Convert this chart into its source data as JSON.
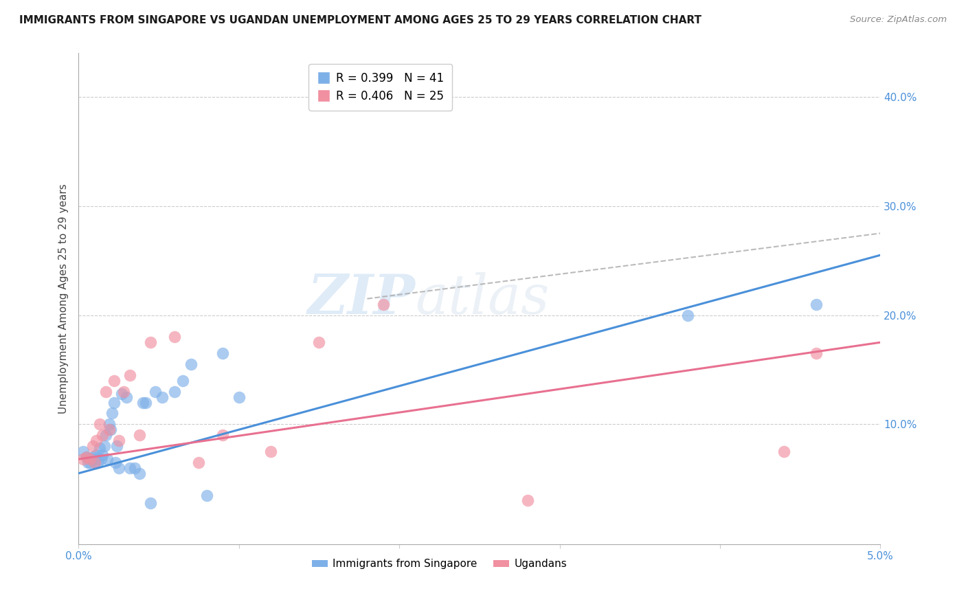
{
  "title": "IMMIGRANTS FROM SINGAPORE VS UGANDAN UNEMPLOYMENT AMONG AGES 25 TO 29 YEARS CORRELATION CHART",
  "source": "Source: ZipAtlas.com",
  "ylabel": "Unemployment Among Ages 25 to 29 years",
  "right_yticks": [
    "40.0%",
    "30.0%",
    "20.0%",
    "10.0%"
  ],
  "right_ytick_vals": [
    0.4,
    0.3,
    0.2,
    0.1
  ],
  "xlim": [
    0.0,
    0.05
  ],
  "ylim": [
    -0.01,
    0.44
  ],
  "legend_r1": "R = 0.399   N = 41",
  "legend_r2": "R = 0.406   N = 25",
  "legend_label1": "Immigrants from Singapore",
  "legend_label2": "Ugandans",
  "color_blue": "#7EB0E8",
  "color_pink": "#F090A0",
  "color_blue_line": "#4A90D9",
  "color_pink_line": "#E87090",
  "color_blue_dashed": "#A0C4F0",
  "color_axis_label": "#4A90D9",
  "watermark_zip": "ZIP",
  "watermark_atlas": "atlas",
  "sg_x": [
    0.0003,
    0.0005,
    0.0006,
    0.0007,
    0.0008,
    0.0009,
    0.001,
    0.001,
    0.0011,
    0.0012,
    0.0013,
    0.0014,
    0.0015,
    0.0016,
    0.0017,
    0.0018,
    0.0019,
    0.002,
    0.0021,
    0.0022,
    0.0023,
    0.0024,
    0.0025,
    0.0027,
    0.003,
    0.0032,
    0.0035,
    0.0038,
    0.004,
    0.0042,
    0.0045,
    0.0048,
    0.0052,
    0.006,
    0.0065,
    0.007,
    0.008,
    0.009,
    0.01,
    0.038,
    0.046
  ],
  "sg_y": [
    0.075,
    0.07,
    0.065,
    0.065,
    0.068,
    0.07,
    0.065,
    0.068,
    0.072,
    0.065,
    0.078,
    0.068,
    0.072,
    0.08,
    0.09,
    0.068,
    0.1,
    0.095,
    0.11,
    0.12,
    0.065,
    0.08,
    0.06,
    0.128,
    0.125,
    0.06,
    0.06,
    0.055,
    0.12,
    0.12,
    0.028,
    0.13,
    0.125,
    0.13,
    0.14,
    0.155,
    0.035,
    0.165,
    0.125,
    0.2,
    0.21
  ],
  "ug_x": [
    0.0003,
    0.0005,
    0.0007,
    0.0009,
    0.001,
    0.0011,
    0.0013,
    0.0015,
    0.0017,
    0.0019,
    0.0022,
    0.0025,
    0.0028,
    0.0032,
    0.0038,
    0.0045,
    0.006,
    0.0075,
    0.009,
    0.012,
    0.015,
    0.019,
    0.028,
    0.044,
    0.046
  ],
  "ug_y": [
    0.068,
    0.07,
    0.068,
    0.08,
    0.065,
    0.085,
    0.1,
    0.09,
    0.13,
    0.095,
    0.14,
    0.085,
    0.13,
    0.145,
    0.09,
    0.175,
    0.18,
    0.065,
    0.09,
    0.075,
    0.175,
    0.21,
    0.03,
    0.075,
    0.165
  ],
  "sg_line_x": [
    0.0,
    0.05
  ],
  "sg_line_y": [
    0.055,
    0.255
  ],
  "ug_line_x": [
    0.0,
    0.05
  ],
  "ug_line_y": [
    0.068,
    0.175
  ],
  "dash_line_x": [
    0.018,
    0.05
  ],
  "dash_line_y": [
    0.215,
    0.275
  ]
}
